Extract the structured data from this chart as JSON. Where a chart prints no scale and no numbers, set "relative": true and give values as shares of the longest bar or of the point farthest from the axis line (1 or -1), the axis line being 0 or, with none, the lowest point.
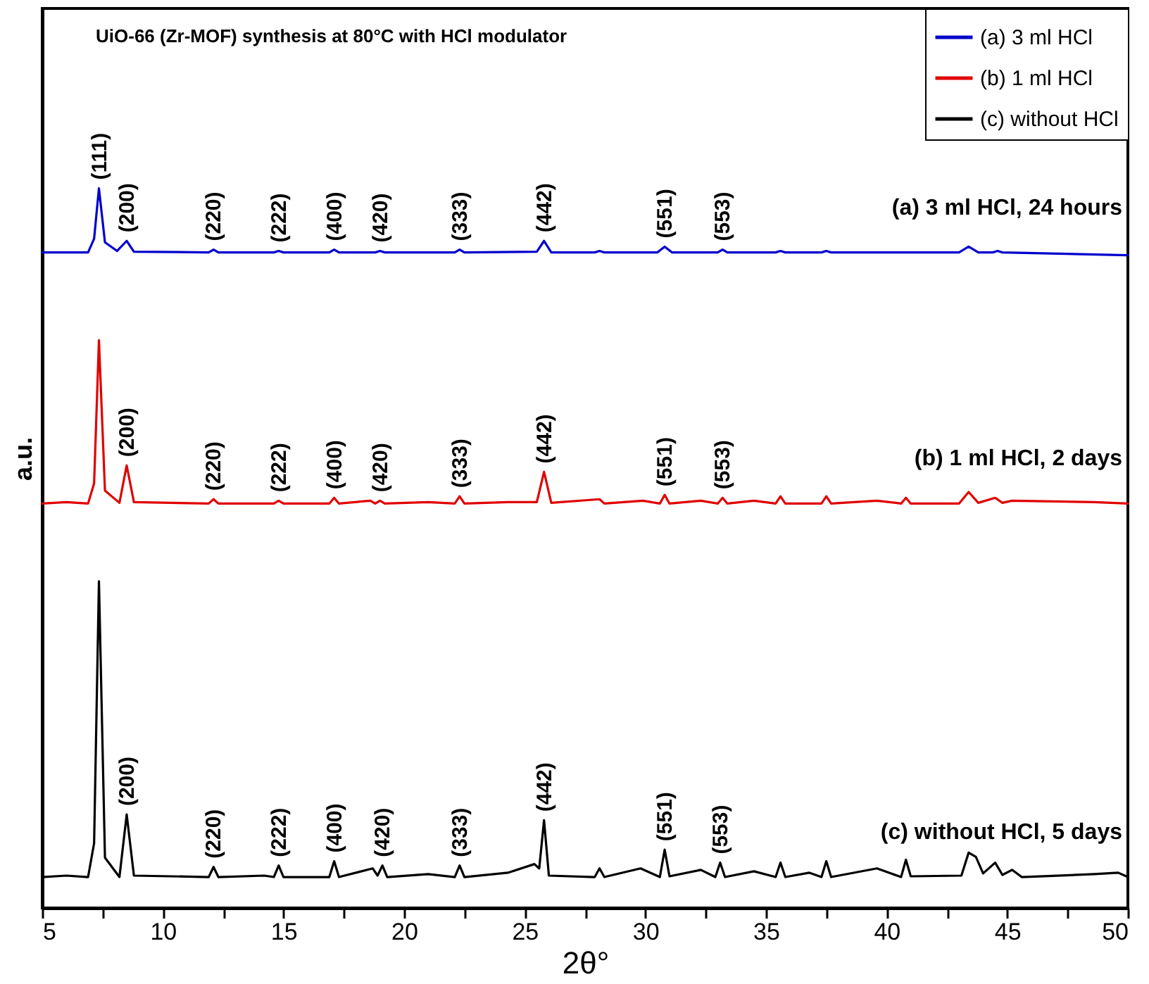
{
  "chart_data": {
    "type": "line",
    "title": "UiO-66 (Zr-MOF) synthesis at 80°C with HCl modulator",
    "xlabel": "2θ°",
    "ylabel": "a.u.",
    "relative": true,
    "tick_labels": "x",
    "legend": "top right",
    "grid": false,
    "marker": "none",
    "line_style": "solid",
    "xlim": [
      5,
      50
    ],
    "xticks": [
      5,
      {
        "value": 7.5,
        "label": null
      },
      10,
      {
        "value": 12.5,
        "label": null
      },
      15,
      {
        "value": 17.5,
        "label": null
      },
      20,
      {
        "value": 22.5,
        "label": null
      },
      25,
      {
        "value": 27.5,
        "label": null
      },
      30,
      {
        "value": 32.5,
        "label": null
      },
      35,
      {
        "value": 37.5,
        "label": null
      },
      40,
      {
        "value": 42.5,
        "label": null
      },
      45,
      {
        "value": 47.5,
        "label": null
      },
      50
    ],
    "series": [
      {
        "name": "(a) 3 ml HCl",
        "color": "#0000cc",
        "x": [
          5,
          6.9,
          7.15,
          7.35,
          7.6,
          8.1,
          8.5,
          8.8,
          11.9,
          12.1,
          12.3,
          14.6,
          14.8,
          15.0,
          16.9,
          17.1,
          17.3,
          18.8,
          19.0,
          19.2,
          22.1,
          22.3,
          22.5,
          25.5,
          25.8,
          26.1,
          27.9,
          28.1,
          28.3,
          30.5,
          30.8,
          31.1,
          33.0,
          33.2,
          33.4,
          35.4,
          35.6,
          35.8,
          37.3,
          37.5,
          37.7,
          43.0,
          43.4,
          43.8,
          44.4,
          44.6,
          44.8,
          50
        ],
        "values": [
          0.911,
          0.911,
          0.93,
          1.0,
          0.925,
          0.913,
          0.927,
          0.912,
          0.911,
          0.915,
          0.911,
          0.911,
          0.913,
          0.911,
          0.911,
          0.915,
          0.911,
          0.911,
          0.913,
          0.911,
          0.911,
          0.915,
          0.911,
          0.912,
          0.927,
          0.911,
          0.911,
          0.913,
          0.911,
          0.911,
          0.919,
          0.911,
          0.911,
          0.915,
          0.911,
          0.911,
          0.913,
          0.911,
          0.911,
          0.913,
          0.911,
          0.911,
          0.919,
          0.911,
          0.911,
          0.913,
          0.911,
          0.907
        ]
      },
      {
        "name": "(b) 1 ml HCl",
        "color": "#e00000",
        "x": [
          5,
          6.0,
          6.9,
          7.15,
          7.35,
          7.6,
          8.2,
          8.5,
          8.8,
          11.9,
          12.1,
          12.3,
          14.6,
          14.8,
          15.0,
          16.9,
          17.1,
          17.3,
          18.6,
          18.8,
          19.0,
          19.2,
          21.0,
          22.1,
          22.3,
          22.5,
          24.3,
          25.5,
          25.8,
          26.1,
          28.1,
          28.3,
          29.9,
          30.6,
          30.8,
          31.0,
          32.3,
          33.0,
          33.2,
          33.4,
          34.5,
          35.4,
          35.6,
          35.8,
          37.3,
          37.5,
          37.7,
          39.6,
          40.6,
          40.8,
          41.0,
          43.0,
          43.4,
          43.8,
          44.5,
          44.8,
          45.2,
          48.6,
          50
        ],
        "values": [
          0.562,
          0.564,
          0.562,
          0.59,
          0.789,
          0.58,
          0.563,
          0.615,
          0.564,
          0.562,
          0.568,
          0.562,
          0.562,
          0.566,
          0.562,
          0.562,
          0.57,
          0.562,
          0.566,
          0.562,
          0.566,
          0.562,
          0.564,
          0.562,
          0.572,
          0.562,
          0.564,
          0.564,
          0.606,
          0.563,
          0.568,
          0.562,
          0.566,
          0.562,
          0.574,
          0.562,
          0.566,
          0.562,
          0.57,
          0.562,
          0.566,
          0.562,
          0.572,
          0.562,
          0.562,
          0.572,
          0.562,
          0.566,
          0.562,
          0.57,
          0.562,
          0.562,
          0.578,
          0.563,
          0.57,
          0.563,
          0.566,
          0.564,
          0.562
        ]
      },
      {
        "name": "(c) without HCl",
        "color": "#000000",
        "x": [
          5,
          6.0,
          6.9,
          7.15,
          7.35,
          7.6,
          8.2,
          8.5,
          8.8,
          11.9,
          12.1,
          12.3,
          14.2,
          14.6,
          14.8,
          15.0,
          16.9,
          17.1,
          17.3,
          18.7,
          18.9,
          19.1,
          19.3,
          21.0,
          22.1,
          22.3,
          22.5,
          24.3,
          25.4,
          25.6,
          25.8,
          26.0,
          27.9,
          28.1,
          28.3,
          29.8,
          30.6,
          30.8,
          31.0,
          32.3,
          32.9,
          33.1,
          33.3,
          34.5,
          35.4,
          35.6,
          35.8,
          36.8,
          37.3,
          37.5,
          37.7,
          39.6,
          40.6,
          40.8,
          41.0,
          43.1,
          43.4,
          43.7,
          44.0,
          44.5,
          44.8,
          45.2,
          45.6,
          48.6,
          49.6,
          50
        ],
        "values": [
          0.043,
          0.045,
          0.043,
          0.09,
          0.454,
          0.07,
          0.043,
          0.13,
          0.045,
          0.043,
          0.057,
          0.043,
          0.045,
          0.043,
          0.059,
          0.043,
          0.043,
          0.065,
          0.043,
          0.055,
          0.045,
          0.059,
          0.043,
          0.047,
          0.043,
          0.059,
          0.043,
          0.049,
          0.061,
          0.055,
          0.122,
          0.045,
          0.043,
          0.055,
          0.043,
          0.055,
          0.043,
          0.081,
          0.044,
          0.053,
          0.043,
          0.063,
          0.043,
          0.051,
          0.043,
          0.063,
          0.043,
          0.049,
          0.043,
          0.065,
          0.043,
          0.055,
          0.043,
          0.067,
          0.044,
          0.045,
          0.077,
          0.071,
          0.048,
          0.063,
          0.046,
          0.053,
          0.043,
          0.047,
          0.049,
          0.043
        ]
      }
    ],
    "annotations": [
      {
        "text": "(111)",
        "x": 7.35,
        "y": 1.0
      },
      {
        "text": "(200)",
        "x": 8.5,
        "y": 0.927
      },
      {
        "text": "(220)",
        "x": 12.1,
        "y": 0.915
      },
      {
        "text": "(222)",
        "x": 14.8,
        "y": 0.913
      },
      {
        "text": "(400)",
        "x": 17.1,
        "y": 0.915
      },
      {
        "text": "(420)",
        "x": 19.0,
        "y": 0.913
      },
      {
        "text": "(333)",
        "x": 22.3,
        "y": 0.915
      },
      {
        "text": "(442)",
        "x": 25.8,
        "y": 0.927
      },
      {
        "text": "(551)",
        "x": 30.8,
        "y": 0.919
      },
      {
        "text": "(553)",
        "x": 33.2,
        "y": 0.915
      },
      {
        "text": "(200)",
        "x": 8.5,
        "y": 0.615
      },
      {
        "text": "(220)",
        "x": 12.1,
        "y": 0.568
      },
      {
        "text": "(222)",
        "x": 14.8,
        "y": 0.566
      },
      {
        "text": "(400)",
        "x": 17.1,
        "y": 0.57
      },
      {
        "text": "(420)",
        "x": 19.0,
        "y": 0.566
      },
      {
        "text": "(333)",
        "x": 22.3,
        "y": 0.572
      },
      {
        "text": "(442)",
        "x": 25.8,
        "y": 0.606
      },
      {
        "text": "(551)",
        "x": 30.8,
        "y": 0.574
      },
      {
        "text": "(553)",
        "x": 33.2,
        "y": 0.57
      },
      {
        "text": "(200)",
        "x": 8.5,
        "y": 0.13
      },
      {
        "text": "(220)",
        "x": 12.1,
        "y": 0.057
      },
      {
        "text": "(222)",
        "x": 14.8,
        "y": 0.059
      },
      {
        "text": "(400)",
        "x": 17.1,
        "y": 0.065
      },
      {
        "text": "(420)",
        "x": 19.1,
        "y": 0.059
      },
      {
        "text": "(333)",
        "x": 22.3,
        "y": 0.059
      },
      {
        "text": "(442)",
        "x": 25.8,
        "y": 0.122
      },
      {
        "text": "(551)",
        "x": 30.8,
        "y": 0.081
      },
      {
        "text": "(553)",
        "x": 33.1,
        "y": 0.063
      },
      {
        "text": "(a) 3 ml HCl, 24 hours",
        "x": 50,
        "y": 0.911
      },
      {
        "text": "(b) 1 ml HCl, 2 days",
        "x": 50,
        "y": 0.562
      },
      {
        "text": "(c) without HCl, 5 days",
        "x": 50,
        "y": 0.043
      }
    ]
  }
}
